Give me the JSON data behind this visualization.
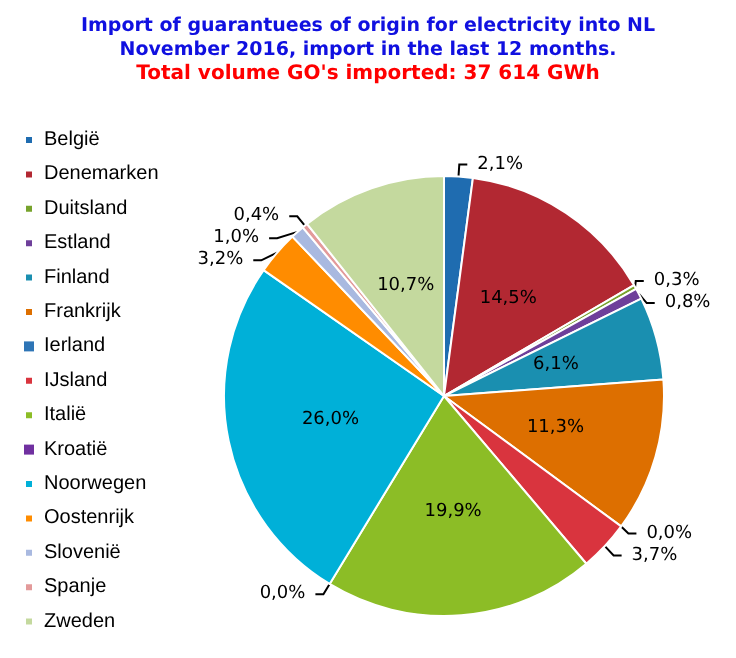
{
  "chart_data": {
    "type": "pie",
    "title": "Import of guarantuees of origin for electricity into NL\nNovember 2016, import in the last 12 months.",
    "subtitle": "Total volume GO's imported: 37 614 GWh",
    "categories": [
      "België",
      "Denemarken",
      "Duitsland",
      "Estland",
      "Finland",
      "Frankrijk",
      "Ierland",
      "IJsland",
      "Italië",
      "Kroatië",
      "Noorwegen",
      "Oostenrijk",
      "Slovenië",
      "Spanje",
      "Zweden"
    ],
    "values": [
      2.1,
      14.5,
      0.3,
      0.8,
      6.1,
      11.3,
      0.0,
      3.7,
      19.9,
      0.0,
      26.0,
      3.2,
      1.0,
      0.4,
      10.7
    ],
    "value_labels": [
      "2,1%",
      "14,5%",
      "0,3%",
      "0,8%",
      "6,1%",
      "11,3%",
      "0,0%",
      "3,7%",
      "19,9%",
      "0,0%",
      "26,0%",
      "3,2%",
      "1,0%",
      "0,4%",
      "10,7%"
    ],
    "colors": [
      "#1f6cb0",
      "#b22832",
      "#77a32c",
      "#6e3f9a",
      "#1a8fb0",
      "#dd6f00",
      "#2e75b6",
      "#d9343e",
      "#8cbd26",
      "#7030a0",
      "#00b0d8",
      "#ff8c00",
      "#a9b9e0",
      "#e39a9a",
      "#c4d99e"
    ],
    "legend": "left"
  }
}
